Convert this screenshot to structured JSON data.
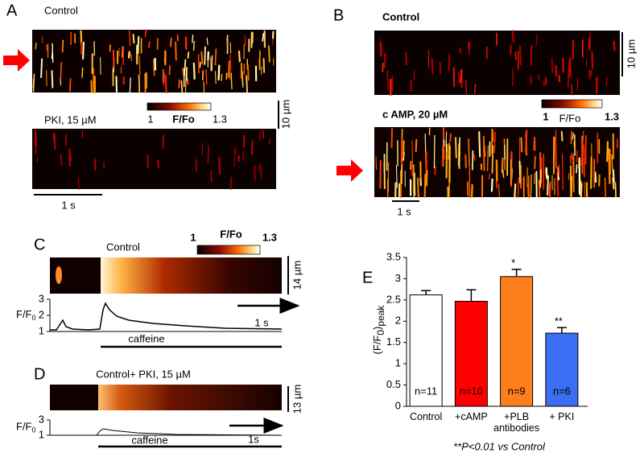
{
  "panel_a": {
    "label": "A",
    "top_label": "Control",
    "bottom_label": "PKI, 15 µM",
    "colorbar": {
      "min_label": "1",
      "title": "F/Fo",
      "max_label": "1.3"
    },
    "scale_y": "10 µm",
    "scale_x": "1 s"
  },
  "panel_b": {
    "label": "B",
    "top_label": "Control",
    "bottom_label": "c AMP, 20 µM",
    "colorbar": {
      "min_label": "1",
      "title": "F/Fo",
      "max_label": "1.3"
    },
    "scale_y": "10 µm",
    "scale_x": "1 s"
  },
  "panel_c": {
    "label": "C",
    "title": "Control",
    "colorbar": {
      "min_label": "1",
      "title": "F/Fo",
      "max_label": "1.3"
    },
    "scale_y": "14 µm",
    "scale_x": "1 s",
    "ylabel": "F/F",
    "ylabel_sub": "0",
    "ylim": [
      1,
      3
    ],
    "yticks": [
      1,
      2,
      3
    ],
    "bar_label": "caffeine"
  },
  "panel_d": {
    "label": "D",
    "title": "Control+ PKI, 15 µM",
    "scale_y": "13 µm",
    "scale_x": "1s",
    "ylabel": "F/F",
    "ylabel_sub": "0",
    "ylim": [
      1,
      3
    ],
    "yticks": [
      1,
      3
    ],
    "bar_label": "caffeine"
  },
  "chart_data": {
    "type": "bar",
    "label": "E",
    "ylabel": "(F/F",
    "ylabel_sub": "0",
    "ylabel_end": ")",
    "ylabel_sub2": "peak",
    "categories": [
      "Control",
      "+cAMP",
      "+PLB antibodies",
      "+ PKI"
    ],
    "values": [
      2.62,
      2.47,
      3.05,
      1.72
    ],
    "errors": [
      0.1,
      0.27,
      0.17,
      0.13
    ],
    "colors": [
      "#ffffff",
      "#ff0000",
      "#ff7f1e",
      "#3b6ef2"
    ],
    "annotations": [
      "n=11",
      "n=10",
      "n=9",
      "n=6"
    ],
    "significance": [
      null,
      null,
      "*",
      "**"
    ],
    "ylim": [
      0,
      3.5
    ],
    "yticks": [
      0,
      0.5,
      1,
      1.5,
      2,
      2.5,
      3,
      3.5
    ],
    "footnote": "**P<0.01 vs Control"
  }
}
